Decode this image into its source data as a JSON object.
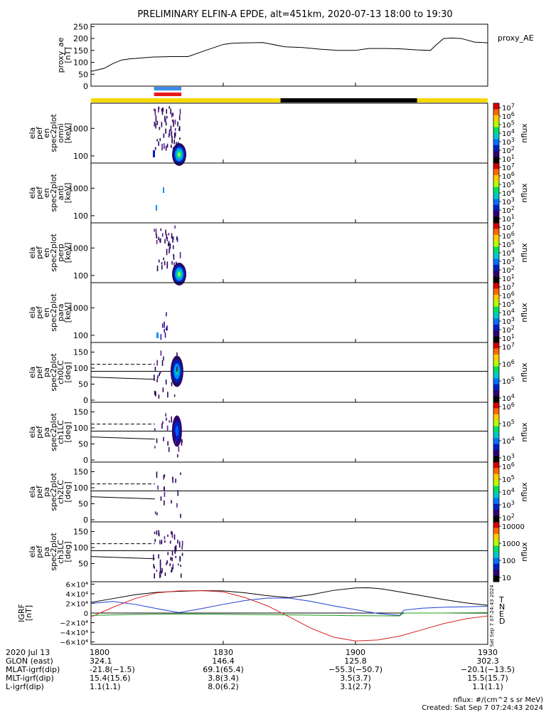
{
  "title": "PRELIMINARY ELFIN-A EPDE, alt=451km, 2020-07-13 18:00 to 19:30",
  "chart_data": {
    "type": "line",
    "xlim_minutes": [
      0,
      90
    ],
    "x_ticks": [
      {
        "minute": 0,
        "label": "1800"
      },
      {
        "minute": 30,
        "label": "1830"
      },
      {
        "minute": 60,
        "label": "1900"
      },
      {
        "minute": 90,
        "label": "1930"
      }
    ],
    "proxy_ae": {
      "ylabel": [
        "proxy_ae",
        "[nT]"
      ],
      "legend": "proxy_AE",
      "ylim": [
        0,
        260
      ],
      "yticks": [
        "250",
        "200",
        "150",
        "100",
        "50",
        "0"
      ],
      "x": [
        0,
        1,
        3,
        5,
        7,
        9,
        10,
        14,
        18,
        22,
        26,
        30,
        32,
        35,
        39,
        44,
        48,
        52,
        56,
        60,
        63,
        67,
        70,
        74,
        77,
        78,
        80,
        82,
        84,
        87,
        90
      ],
      "y": [
        62,
        66,
        75,
        95,
        110,
        115,
        116,
        122,
        124,
        124,
        150,
        175,
        180,
        182,
        183,
        165,
        162,
        155,
        150,
        150,
        158,
        158,
        157,
        152,
        150,
        168,
        200,
        202,
        200,
        185,
        182
      ]
    },
    "status_bar": {
      "segments": [
        {
          "from": 0,
          "to": 43,
          "color": "#f6d800"
        },
        {
          "from": 43,
          "to": 74,
          "color": "#000000"
        },
        {
          "from": 74,
          "to": 90,
          "color": "#f6d800"
        }
      ],
      "science_zone": {
        "from": 14.3,
        "to": 20.5,
        "colors": [
          "#3a8ce6",
          "#e81a1a"
        ]
      }
    },
    "spectrogram_panels": [
      {
        "ylabel": [
          "ela",
          "pef",
          "en",
          "spec2plot",
          "omni",
          "[keV]"
        ],
        "yticks": [
          "1000",
          "100"
        ],
        "colorbar_ticks": [
          "10^7",
          "10^6",
          "10^5",
          "10^4",
          "10^3",
          "10^2",
          "10^1"
        ],
        "colorbar_label": "nflux"
      },
      {
        "ylabel": [
          "ela",
          "pef",
          "en",
          "spec2plot",
          "anti",
          "[keV]"
        ],
        "yticks": [
          "1000",
          "100"
        ],
        "colorbar_ticks": [
          "10^7",
          "10^6",
          "10^5",
          "10^4",
          "10^3",
          "10^2",
          "10^1"
        ],
        "colorbar_label": "nflux"
      },
      {
        "ylabel": [
          "ela",
          "pef",
          "en",
          "spec2plot",
          "perp",
          "[keV]"
        ],
        "yticks": [
          "1000",
          "100"
        ],
        "colorbar_ticks": [
          "10^7",
          "10^6",
          "10^5",
          "10^4",
          "10^3",
          "10^2",
          "10^1"
        ],
        "colorbar_label": "nflux"
      },
      {
        "ylabel": [
          "ela",
          "pef",
          "en",
          "spec2plot",
          "para",
          "[keV]"
        ],
        "yticks": [
          "1000",
          "100"
        ],
        "colorbar_ticks": [
          "10^7",
          "10^6",
          "10^5",
          "10^4",
          "10^3",
          "10^2",
          "10^1"
        ],
        "colorbar_label": "nflux"
      }
    ],
    "pitch_panels": [
      {
        "ylabel": [
          "ela",
          "pef",
          "pa",
          "spec2plot",
          "ch0LC",
          "[deg]"
        ],
        "yticks": [
          "150",
          "100",
          "50",
          "0"
        ],
        "colorbar_ticks": [
          "10^7",
          "10^6",
          "10^5",
          "10^4"
        ],
        "colorbar_label": "nflux"
      },
      {
        "ylabel": [
          "ela",
          "pef",
          "pa",
          "spec2plot",
          "ch1LC",
          "[deg]"
        ],
        "yticks": [
          "150",
          "100",
          "50",
          "0"
        ],
        "colorbar_ticks": [
          "10^6",
          "10^5",
          "10^4",
          "10^3"
        ],
        "colorbar_label": "nflux"
      },
      {
        "ylabel": [
          "ela",
          "pef",
          "pa",
          "spec2plot",
          "ch2LC",
          "[deg]"
        ],
        "yticks": [
          "150",
          "100",
          "50",
          "0"
        ],
        "colorbar_ticks": [
          "10^6",
          "10^5",
          "10^4",
          "10^3",
          "10^2"
        ],
        "colorbar_label": "nflux"
      },
      {
        "ylabel": [
          "ela",
          "pef",
          "pa",
          "spec2plot",
          "ch3LC",
          "[deg]"
        ],
        "yticks": [
          "150",
          "100",
          "50"
        ],
        "colorbar_ticks": [
          "10000",
          "1000",
          "100",
          "10"
        ],
        "colorbar_label": "nflux"
      }
    ],
    "igrf": {
      "ylabel": [
        "IGRF",
        "[nT]"
      ],
      "ylim": [
        -65000,
        65000
      ],
      "yticks": [
        "6×10⁴",
        "4×10⁴",
        "2×10⁴",
        "0",
        "−2×10⁴",
        "−4×10⁴",
        "−6×10⁴"
      ],
      "legend": [
        "T",
        "N",
        "E",
        "D"
      ],
      "series": [
        {
          "name": "T",
          "color": "#000000",
          "x": [
            0,
            5,
            10,
            15,
            20,
            25,
            30,
            35,
            40,
            45,
            50,
            55,
            60,
            63,
            66,
            70,
            75,
            80,
            85,
            90
          ],
          "y": [
            22000,
            30000,
            38000,
            43000,
            45000,
            46500,
            46000,
            42000,
            36000,
            32000,
            38000,
            47000,
            52000,
            52500,
            50000,
            44000,
            36000,
            28000,
            21000,
            16000
          ]
        },
        {
          "name": "N",
          "color": "#1f3fd1",
          "x": [
            0,
            5,
            10,
            15,
            20,
            25,
            30,
            35,
            40,
            45,
            50,
            55,
            60,
            65,
            70,
            71,
            75,
            80,
            85,
            90
          ],
          "y": [
            20000,
            24000,
            18000,
            9000,
            1000,
            9000,
            18000,
            26000,
            31000,
            31000,
            24000,
            15000,
            7000,
            -1000,
            -5000,
            6000,
            10000,
            12000,
            13000,
            14000
          ]
        },
        {
          "name": "D",
          "color": "#d62020",
          "x": [
            0,
            5,
            10,
            15,
            20,
            25,
            30,
            35,
            40,
            45,
            50,
            55,
            60,
            65,
            70,
            75,
            80,
            85,
            90
          ],
          "y": [
            -8000,
            12000,
            30000,
            42000,
            46000,
            46500,
            44000,
            32000,
            15000,
            -8000,
            -32000,
            -50000,
            -58000,
            -56000,
            -48000,
            -35000,
            -22000,
            -12000,
            -6000
          ]
        },
        {
          "name": "E",
          "color": "#1a9e1a",
          "x": [
            0,
            10,
            20,
            30,
            40,
            50,
            60,
            70,
            71,
            80,
            90
          ],
          "y": [
            -5000,
            -3000,
            -2000,
            -2500,
            -3500,
            -4500,
            -5500,
            -6000,
            0,
            0,
            1000
          ]
        }
      ]
    }
  },
  "footer": {
    "rows": [
      {
        "label": "2020 Jul 13",
        "values": [
          "1800",
          "1830",
          "1900",
          "1930"
        ]
      },
      {
        "label": "GLON (east)",
        "values": [
          "324.1",
          "146.4",
          "125.8",
          "302.3"
        ]
      },
      {
        "label": "MLAT-igrf(dip)",
        "values": [
          "-21.8(−1.5)",
          "69.1(65.4)",
          "−55.3(−50.7)",
          "−20.1(−13.5)"
        ]
      },
      {
        "label": "MLT-igrf(dip)",
        "values": [
          "15.4(15.6)",
          "3.8(3.4)",
          "3.5(3.7)",
          "15.5(15.7)"
        ]
      },
      {
        "label": "L-igrf(dip)",
        "values": [
          "1.1(1.1)",
          "8.0(6.2)",
          "3.1(2.7)",
          "1.1(1.1)"
        ]
      }
    ],
    "units_note": "nflux: #/(cm^2 s sr MeV)",
    "created": "Created: Sat Sep  7 07:24:43 2024",
    "side_stamp": "Sat Sep  7 07:24:43 2024"
  }
}
